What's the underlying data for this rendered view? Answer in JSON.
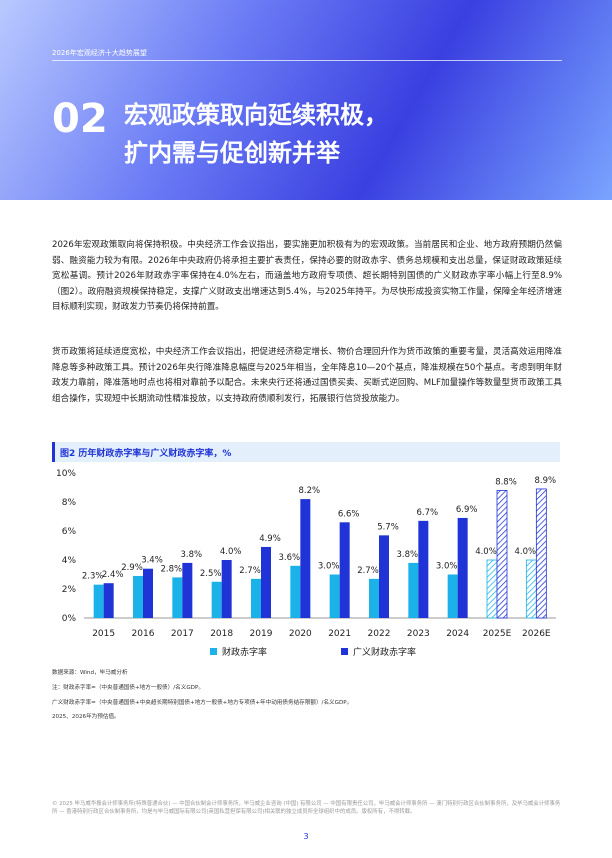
{
  "header": {
    "tag": "2026年宏观经济十大趋势展望",
    "number": "02",
    "title_lines": [
      "宏观政策取向延续积极，",
      "扩内需与促创新并举"
    ]
  },
  "paragraphs": [
    "2026年宏观政策取向将保持积极。中央经济工作会议指出，要实施更加积极有为的宏观政策。当前居民和企业、地方政府预期仍然偏弱、融资能力较为有限。2026年中央政府仍将承担主要扩表责任，保持必要的财政赤字、债务总规模和支出总量，保证财政政策延续宽松基调。预计2026年财政赤字率保持在4.0%左右，而涵盖地方政府专项债、超长期特别国债的广义财政赤字率小幅上行至8.9%（图2）。政府融资规模保持稳定，支撑广义财政支出增速达到5.4%，与2025年持平。为尽快形成投资实物工作量，保障全年经济增速目标顺利实现，财政发力节奏仍将保持前置。",
    "货币政策将延续适度宽松，中央经济工作会议指出，把促进经济稳定增长、物价合理回升作为货币政策的重要考量，灵活高效运用降准降息等多种政策工具。预计2026年央行降准降息幅度与2025年相当，全年降息10—20个基点，降准规模在50个基点。考虑到明年财政发力靠前，降准落地时点也将相对靠前予以配合。未来央行还将通过国债买卖、买断式逆回购、MLF加量操作等数量型货币政策工具组合操作，实现短中长期流动性精准投放，以支持政府债顺利发行，拓展银行信贷投放能力。"
  ],
  "chart_data": {
    "type": "bar",
    "title": "图2 历年财政赤字率与广义财政赤字率，%",
    "categories": [
      "2015",
      "2016",
      "2017",
      "2018",
      "2019",
      "2020",
      "2021",
      "2022",
      "2023",
      "2024",
      "2025E",
      "2026E"
    ],
    "hatched": [
      false,
      false,
      false,
      false,
      false,
      false,
      false,
      false,
      false,
      false,
      true,
      true
    ],
    "series": [
      {
        "name": "财政赤字率",
        "color": "#1ab2e8",
        "values": [
          2.3,
          2.9,
          2.8,
          2.5,
          2.7,
          3.6,
          3.0,
          2.7,
          3.8,
          3.0,
          4.0,
          4.0
        ],
        "value_labels": [
          "2.3%",
          "2.9%",
          "2.8%",
          "2.5%",
          "2.7%",
          "3.6%",
          "3.0%",
          "2.7%",
          "3.8%",
          "3.0%",
          "4.0%",
          "4.0%"
        ]
      },
      {
        "name": "广义财政赤字率",
        "color": "#1f33d6",
        "values": [
          2.4,
          3.4,
          3.8,
          4.0,
          4.9,
          8.2,
          6.6,
          5.7,
          6.7,
          6.9,
          8.8,
          8.9
        ],
        "value_labels": [
          "2.4%",
          "3.4%",
          "3.8%",
          "4.0%",
          "4.9%",
          "8.2%",
          "6.6%",
          "5.7%",
          "6.7%",
          "6.9%",
          "8.8%",
          "8.9%"
        ]
      }
    ],
    "ylim": [
      0,
      10
    ],
    "yticks": [
      {
        "value": 0,
        "label": "0%"
      },
      {
        "value": 2,
        "label": "2%"
      },
      {
        "value": 4,
        "label": "4%"
      },
      {
        "value": 6,
        "label": "6%"
      },
      {
        "value": 8,
        "label": "8%"
      },
      {
        "value": 10,
        "label": "10%"
      }
    ],
    "grid": false,
    "legend": "bottom"
  },
  "notes": [
    "数据来源：Wind，毕马威分析",
    "注：财政赤字率=（中央普通国债+地方一般债）/名义GDP。",
    "广义财政赤字率=（中央普通国债+中央超长期特别国债+地方一般债+地方专项债+年中动用债务结存限额）/名义GDP。",
    "2025、2026年为预估值。"
  ],
  "footer": {
    "disclaimer": "© 2025 毕马威华振会计师事务所(特殊普通合伙) — 中国合伙制会计师事务所，毕马威企业咨询 (中国) 有限公司 — 中国有限责任公司，毕马威会计师事务所 — 澳门特别行政区合伙制事务所，及毕马威会计师事务所 — 香港特别行政区合伙制事务所，均是与毕马威国际有限公司(英国私营担保有限公司)相关联的独立成员所全球组织中的成员。版权所有，不得转载。",
    "page": "3"
  }
}
